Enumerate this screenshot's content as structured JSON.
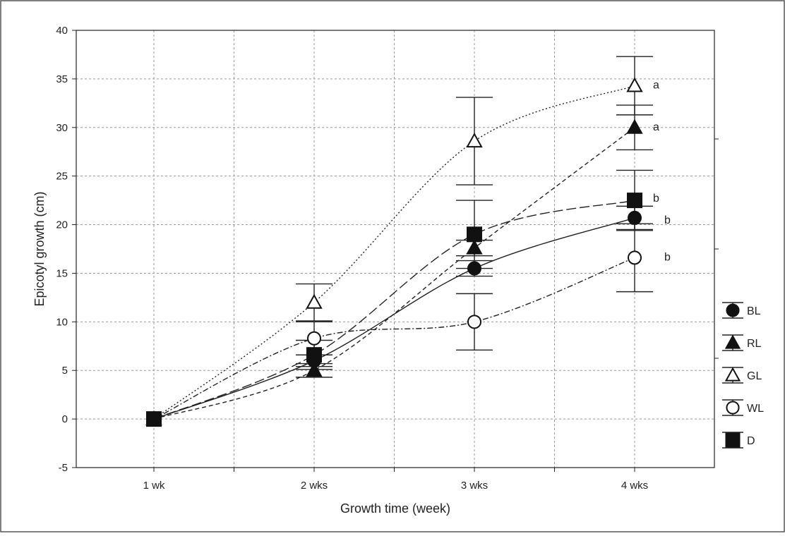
{
  "chart_data": {
    "type": "line",
    "title": "",
    "xlabel": "Growth time (week)",
    "ylabel": "Epicotyl growth (cm)",
    "categories": [
      "1 wk",
      "2 wks",
      "3 wks",
      "4 wks"
    ],
    "ylim": [
      -5,
      40
    ],
    "yticks": [
      -5,
      0,
      5,
      10,
      15,
      20,
      25,
      30,
      35,
      40
    ],
    "grid": true,
    "legend_position": "right",
    "series": [
      {
        "name": "BL",
        "marker": "circle-filled",
        "dash": "none",
        "values": [
          0,
          6.0,
          15.5,
          20.7
        ],
        "errors": [
          0,
          0.6,
          0.8,
          1.2
        ]
      },
      {
        "name": "RL",
        "marker": "triangle-filled",
        "dash": "dashed",
        "values": [
          0,
          5.0,
          17.6,
          30.0
        ],
        "errors": [
          0,
          0.7,
          0.8,
          2.3
        ]
      },
      {
        "name": "GL",
        "marker": "triangle-open",
        "dash": "dotted",
        "values": [
          0,
          12.0,
          28.6,
          34.3
        ],
        "errors": [
          0,
          1.9,
          4.5,
          3.0
        ]
      },
      {
        "name": "WL",
        "marker": "circle-open",
        "dash": "dashdot",
        "values": [
          0,
          8.3,
          10.0,
          16.6
        ],
        "errors": [
          0,
          1.7,
          2.9,
          3.5
        ]
      },
      {
        "name": "D",
        "marker": "square-filled",
        "dash": "longdash",
        "values": [
          0,
          6.6,
          19.0,
          22.5
        ],
        "errors": [
          0,
          1.5,
          3.5,
          3.1
        ]
      }
    ],
    "annotations": [
      {
        "text": "a",
        "series": "GL",
        "category": "4 wks"
      },
      {
        "text": "a",
        "series": "RL",
        "category": "4 wks"
      },
      {
        "text": "b",
        "series": "D",
        "category": "4 wks"
      },
      {
        "text": "b",
        "series": "BL",
        "category": "4 wks"
      },
      {
        "text": "b",
        "series": "WL",
        "category": "4 wks"
      }
    ]
  }
}
